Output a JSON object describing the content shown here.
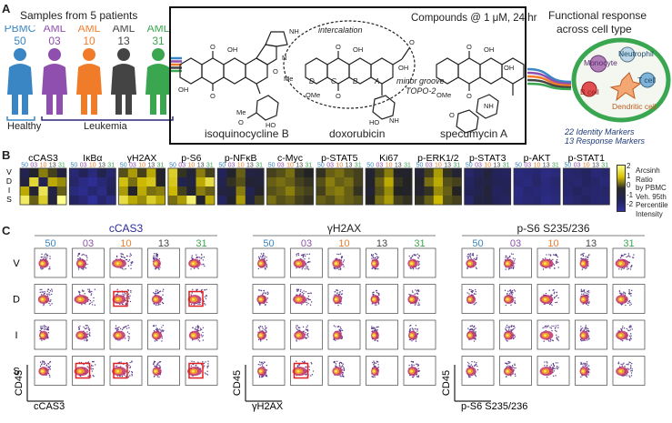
{
  "panelA": {
    "label": "A",
    "samples_title": "Samples from 5 patients",
    "people": [
      {
        "type": "PBMC",
        "id": "50",
        "color": "#3a86c4"
      },
      {
        "type": "AML",
        "id": "03",
        "color": "#8e4fae"
      },
      {
        "type": "AML",
        "id": "10",
        "color": "#f07c2a"
      },
      {
        "type": "AML",
        "id": "13",
        "color": "#444444"
      },
      {
        "type": "AML",
        "id": "31",
        "color": "#3aa650"
      }
    ],
    "healthy": "Healthy",
    "leukemia": "Leukemia",
    "compounds_title": "Compounds @ 1 μM, 24 hr",
    "intercalation": "intercalation",
    "minor_groove": "minor groove",
    "topo": "TOPO-2",
    "ring_labels": [
      "D",
      "C",
      "B",
      "A"
    ],
    "compounds": [
      "isoquinocycline B",
      "doxorubicin",
      "specumycin A"
    ],
    "functional_title": [
      "Functional response",
      "across cell type"
    ],
    "cells": [
      "Monocyte",
      "Neutrophil",
      "T cell",
      "B cell",
      "Dendritic cell"
    ],
    "markers": [
      "22 Identity Markers",
      "13 Response Markers"
    ]
  },
  "panelB": {
    "label": "B",
    "row_labels": [
      "V",
      "D",
      "I",
      "S"
    ],
    "markers": [
      "cCAS3",
      "IκBα",
      "γH2AX",
      "p-S6",
      "p-NFκB",
      "c-Myc",
      "p-STAT5",
      "Ki67",
      "p-ERK1/2",
      "p-STAT3",
      "p-AKT",
      "p-STAT1"
    ],
    "sample_ids": [
      "50",
      "03",
      "10",
      "13",
      "31"
    ],
    "sample_colors": [
      "#3a86c4",
      "#8e4fae",
      "#f07c2a",
      "#444444",
      "#3aa650"
    ],
    "colorbar_ticks": [
      "2",
      "1",
      "0",
      "-1",
      "-2"
    ],
    "colorbar_title": [
      "Arcsinh",
      "Ratio",
      "by PBMC",
      "Veh. 95th",
      "Percentile",
      "Intensity"
    ]
  },
  "panelC": {
    "label": "C",
    "row_labels": [
      "V",
      "D",
      "I",
      "S"
    ],
    "groups": [
      {
        "title": "cCAS3",
        "title_color": "#2a2a9a",
        "xlabel": "cCAS3",
        "ylabel": "CD45",
        "boxes": [
          [
            1,
            2
          ],
          [
            1,
            4
          ],
          [
            3,
            1
          ],
          [
            3,
            2
          ],
          [
            3,
            4
          ]
        ]
      },
      {
        "title": "γH2AX",
        "title_color": "#222222",
        "xlabel": "γH2AX",
        "ylabel": "CD45",
        "boxes": [
          [
            3,
            1
          ]
        ]
      },
      {
        "title": "p-S6 S235/236",
        "title_color": "#222222",
        "xlabel": "p-S6 S235/236",
        "ylabel": "CD45",
        "boxes": []
      }
    ],
    "sample_ids": [
      "50",
      "03",
      "10",
      "13",
      "31"
    ]
  }
}
